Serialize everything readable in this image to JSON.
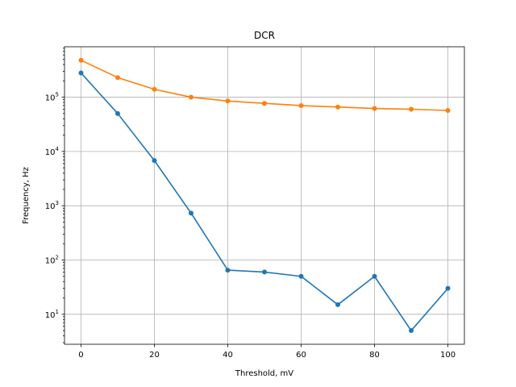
{
  "chart_data": {
    "type": "line",
    "title": "DCR",
    "xlabel": "Threshold, mV",
    "ylabel": "Frequency, Hz",
    "yscale": "log",
    "xlim": [
      -4.5,
      104.5
    ],
    "ylim": [
      2.8,
      850000
    ],
    "xticks": [
      0,
      20,
      40,
      60,
      80,
      100
    ],
    "yticks": [
      {
        "value": 10,
        "base": "10",
        "exp": "1"
      },
      {
        "value": 100,
        "base": "10",
        "exp": "2"
      },
      {
        "value": 1000,
        "base": "10",
        "exp": "3"
      },
      {
        "value": 10000,
        "base": "10",
        "exp": "4"
      },
      {
        "value": 100000,
        "base": "10",
        "exp": "5"
      }
    ],
    "grid": true,
    "x": [
      0,
      10,
      20,
      30,
      40,
      50,
      60,
      70,
      80,
      90,
      100
    ],
    "series": [
      {
        "color": "#1f77b4",
        "values": [
          280000,
          50000,
          6800,
          730,
          65,
          60,
          50,
          15,
          50,
          5,
          30
        ]
      },
      {
        "color": "#ff7f0e",
        "values": [
          480000,
          230000,
          140000,
          100000,
          85000,
          77000,
          70000,
          66000,
          62000,
          60000,
          57000
        ]
      }
    ]
  }
}
